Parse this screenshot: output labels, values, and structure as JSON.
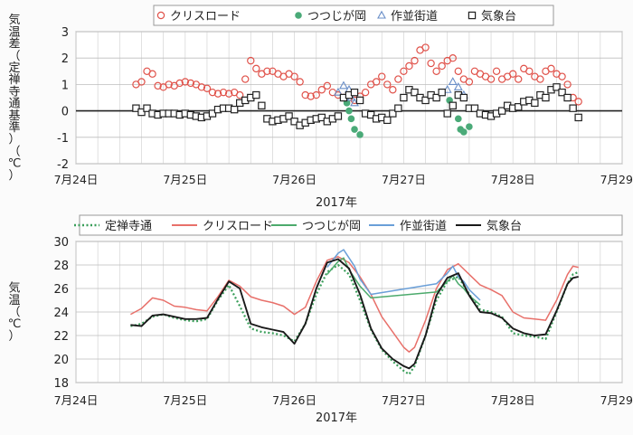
{
  "chart_data": [
    {
      "type": "scatter",
      "xlabel": "2017年",
      "ylabel": "気温差（定禅寺通基準）（℃）",
      "ylim": [
        -2,
        3
      ],
      "yticks": [
        -2,
        -1,
        0,
        1,
        2,
        3
      ],
      "xlim": [
        24,
        29
      ],
      "xtick_values": [
        24,
        25,
        26,
        27,
        28,
        29
      ],
      "xtick_labels": [
        "7月24日",
        "7月25日",
        "7月26日",
        "7月27日",
        "7月28日",
        "7月29日"
      ],
      "grid": true,
      "legend_position": "top",
      "series": [
        {
          "name": "クリスロード",
          "marker": "circle-open",
          "color": "#e0524a",
          "x": [
            24.55,
            24.6,
            24.65,
            24.7,
            24.75,
            24.8,
            24.85,
            24.9,
            24.95,
            25.0,
            25.05,
            25.1,
            25.15,
            25.2,
            25.25,
            25.3,
            25.35,
            25.4,
            25.45,
            25.5,
            25.55,
            25.6,
            25.65,
            25.7,
            25.75,
            25.8,
            25.85,
            25.9,
            25.95,
            26.0,
            26.05,
            26.1,
            26.15,
            26.2,
            26.25,
            26.3,
            26.35,
            26.4,
            26.45,
            26.5,
            26.55,
            26.6,
            26.65,
            26.7,
            26.75,
            26.8,
            26.85,
            26.9,
            26.95,
            27.0,
            27.05,
            27.1,
            27.15,
            27.2,
            27.25,
            27.3,
            27.35,
            27.4,
            27.45,
            27.5,
            27.55,
            27.6,
            27.65,
            27.7,
            27.75,
            27.8,
            27.85,
            27.9,
            27.95,
            28.0,
            28.05,
            28.1,
            28.15,
            28.2,
            28.25,
            28.3,
            28.35,
            28.4,
            28.45,
            28.5,
            28.55,
            28.6
          ],
          "y": [
            1.0,
            1.1,
            1.5,
            1.4,
            0.95,
            0.9,
            1.0,
            0.95,
            1.05,
            1.1,
            1.05,
            1.0,
            0.9,
            0.85,
            0.7,
            0.65,
            0.7,
            0.65,
            0.7,
            0.6,
            1.2,
            1.9,
            1.6,
            1.4,
            1.5,
            1.5,
            1.4,
            1.3,
            1.4,
            1.3,
            1.1,
            0.6,
            0.55,
            0.6,
            0.8,
            0.95,
            0.7,
            0.6,
            0.5,
            0.5,
            0.4,
            0.55,
            0.7,
            1.0,
            1.1,
            1.3,
            1.0,
            0.8,
            1.2,
            1.5,
            1.7,
            1.9,
            2.3,
            2.4,
            1.8,
            1.5,
            1.7,
            1.9,
            2.0,
            1.5,
            1.2,
            1.1,
            1.5,
            1.4,
            1.3,
            1.2,
            1.5,
            1.2,
            1.3,
            1.4,
            1.2,
            1.6,
            1.5,
            1.3,
            1.2,
            1.5,
            1.6,
            1.4,
            1.3,
            1.0,
            0.5,
            0.35
          ]
        },
        {
          "name": "つつじが岡",
          "marker": "circle-filled",
          "color": "#4aaa78",
          "x": [
            26.45,
            26.48,
            26.5,
            26.52,
            26.55,
            26.6,
            27.42,
            27.45,
            27.5,
            27.52,
            27.55,
            27.6
          ],
          "y": [
            0.5,
            0.3,
            0.0,
            -0.3,
            -0.7,
            -0.9,
            0.4,
            0.2,
            -0.3,
            -0.7,
            -0.8,
            -0.6
          ]
        },
        {
          "name": "作並街道",
          "marker": "triangle-open",
          "color": "#6a8fc8",
          "x": [
            26.4,
            26.45,
            26.5,
            26.52,
            26.55,
            27.4,
            27.45,
            27.5,
            27.55
          ],
          "y": [
            0.7,
            0.95,
            0.8,
            0.5,
            0.3,
            0.8,
            1.1,
            0.9,
            0.6
          ]
        },
        {
          "name": "気象台",
          "marker": "square-open",
          "color": "#222222",
          "x": [
            24.55,
            24.6,
            24.65,
            24.7,
            24.75,
            24.8,
            24.85,
            24.9,
            24.95,
            25.0,
            25.05,
            25.1,
            25.15,
            25.2,
            25.25,
            25.3,
            25.35,
            25.4,
            25.45,
            25.5,
            25.55,
            25.6,
            25.65,
            25.7,
            25.75,
            25.8,
            25.85,
            25.9,
            25.95,
            26.0,
            26.05,
            26.1,
            26.15,
            26.2,
            26.25,
            26.3,
            26.35,
            26.4,
            26.45,
            26.5,
            26.55,
            26.6,
            26.65,
            26.7,
            26.75,
            26.8,
            26.85,
            26.9,
            26.95,
            27.0,
            27.05,
            27.1,
            27.15,
            27.2,
            27.25,
            27.3,
            27.35,
            27.4,
            27.45,
            27.5,
            27.55,
            27.6,
            27.65,
            27.7,
            27.75,
            27.8,
            27.85,
            27.9,
            27.95,
            28.0,
            28.05,
            28.1,
            28.15,
            28.2,
            28.25,
            28.3,
            28.35,
            28.4,
            28.45,
            28.5,
            28.55,
            28.6
          ],
          "y": [
            0.1,
            -0.05,
            0.1,
            -0.1,
            -0.15,
            -0.1,
            -0.1,
            -0.1,
            -0.15,
            -0.1,
            -0.15,
            -0.2,
            -0.25,
            -0.2,
            -0.1,
            0.05,
            0.1,
            0.1,
            0.05,
            0.3,
            0.4,
            0.5,
            0.6,
            0.2,
            -0.3,
            -0.4,
            -0.35,
            -0.3,
            -0.2,
            -0.4,
            -0.55,
            -0.45,
            -0.35,
            -0.3,
            -0.25,
            -0.4,
            -0.3,
            -0.2,
            0.5,
            0.6,
            0.7,
            0.4,
            -0.1,
            -0.15,
            -0.3,
            -0.25,
            -0.35,
            -0.1,
            0.1,
            0.5,
            0.8,
            0.7,
            0.5,
            0.4,
            0.6,
            0.5,
            0.7,
            -0.1,
            0.2,
            0.6,
            0.5,
            0.1,
            0.1,
            -0.1,
            -0.15,
            -0.2,
            -0.1,
            0.0,
            0.2,
            0.1,
            0.15,
            0.35,
            0.4,
            0.3,
            0.6,
            0.5,
            0.8,
            0.9,
            0.7,
            0.5,
            0.1,
            -0.25
          ]
        }
      ]
    },
    {
      "type": "line",
      "xlabel": "2017年",
      "ylabel": "気温（℃）",
      "ylim": [
        18,
        30
      ],
      "yticks": [
        18,
        20,
        22,
        24,
        26,
        28,
        30
      ],
      "xlim": [
        24,
        29
      ],
      "xtick_values": [
        24,
        25,
        26,
        27,
        28,
        29
      ],
      "xtick_labels": [
        "7月24日",
        "7月25日",
        "7月26日",
        "7月27日",
        "7月28日",
        "7月29日"
      ],
      "grid": true,
      "legend_position": "top",
      "series": [
        {
          "name": "定禅寺通",
          "style": "dotted",
          "color": "#3a9e5a",
          "x": [
            24.5,
            24.6,
            24.7,
            24.8,
            24.9,
            25.0,
            25.1,
            25.2,
            25.3,
            25.4,
            25.5,
            25.6,
            25.7,
            25.8,
            25.9,
            26.0,
            26.1,
            26.2,
            26.3,
            26.4,
            26.5,
            26.6,
            26.7,
            26.8,
            26.9,
            27.0,
            27.05,
            27.1,
            27.2,
            27.3,
            27.4,
            27.5,
            27.6,
            27.7,
            27.8,
            27.9,
            28.0,
            28.1,
            28.2,
            28.3,
            28.4,
            28.5,
            28.55,
            28.6
          ],
          "y": [
            22.8,
            23.0,
            23.6,
            23.8,
            23.5,
            23.3,
            23.2,
            23.4,
            25.0,
            26.3,
            24.5,
            22.6,
            22.3,
            22.2,
            22.0,
            21.5,
            23.0,
            25.5,
            27.4,
            28.0,
            27.2,
            25.0,
            22.5,
            20.8,
            19.8,
            19.0,
            18.7,
            19.4,
            22.0,
            25.0,
            26.6,
            27.0,
            25.5,
            24.2,
            24.0,
            23.6,
            22.2,
            22.0,
            21.9,
            21.7,
            24.0,
            26.4,
            27.2,
            27.4
          ]
        },
        {
          "name": "クリスロード",
          "style": "solid",
          "color": "#e8706a",
          "x": [
            24.5,
            24.6,
            24.7,
            24.8,
            24.9,
            25.0,
            25.1,
            25.2,
            25.3,
            25.4,
            25.5,
            25.6,
            25.7,
            25.8,
            25.9,
            26.0,
            26.1,
            26.2,
            26.3,
            26.4,
            26.5,
            26.6,
            26.7,
            26.8,
            26.9,
            27.0,
            27.05,
            27.1,
            27.2,
            27.3,
            27.4,
            27.5,
            27.6,
            27.7,
            27.8,
            27.9,
            28.0,
            28.1,
            28.2,
            28.3,
            28.4,
            28.5,
            28.55,
            28.6
          ],
          "y": [
            23.8,
            24.3,
            25.2,
            25.0,
            24.5,
            24.4,
            24.2,
            24.1,
            25.3,
            26.7,
            26.2,
            25.3,
            25.0,
            24.8,
            24.5,
            23.8,
            24.4,
            26.6,
            28.4,
            28.7,
            28.2,
            27.0,
            25.5,
            23.6,
            22.3,
            21.0,
            20.6,
            21.0,
            23.3,
            26.0,
            27.6,
            28.1,
            27.2,
            26.3,
            25.9,
            25.4,
            24.0,
            23.5,
            23.4,
            23.3,
            25.0,
            27.2,
            27.9,
            27.8
          ]
        },
        {
          "name": "つつじが岡",
          "style": "solid",
          "color": "#4caa6c",
          "x": [
            26.3,
            26.4,
            26.45,
            26.5,
            26.55,
            26.6,
            26.7,
            27.3,
            27.4,
            27.45,
            27.5,
            27.55,
            27.6,
            27.7
          ],
          "y": [
            27.2,
            28.3,
            28.6,
            27.6,
            26.9,
            26.2,
            25.2,
            25.7,
            26.6,
            27.1,
            26.4,
            26.0,
            25.4,
            24.6
          ]
        },
        {
          "name": "作並街道",
          "style": "solid",
          "color": "#6a9fd8",
          "x": [
            26.3,
            26.4,
            26.45,
            26.5,
            26.55,
            26.6,
            26.7,
            27.3,
            27.4,
            27.45,
            27.5,
            27.55,
            27.6,
            27.7
          ],
          "y": [
            27.8,
            29.0,
            29.3,
            28.6,
            27.9,
            26.8,
            25.5,
            26.4,
            27.3,
            27.9,
            27.0,
            26.6,
            25.9,
            25.0
          ]
        },
        {
          "name": "気象台",
          "style": "solid",
          "color": "#1a1a1a",
          "x": [
            24.5,
            24.6,
            24.7,
            24.8,
            24.9,
            25.0,
            25.1,
            25.2,
            25.3,
            25.4,
            25.5,
            25.6,
            25.7,
            25.8,
            25.9,
            26.0,
            26.1,
            26.2,
            26.3,
            26.4,
            26.5,
            26.6,
            26.7,
            26.8,
            26.9,
            27.0,
            27.05,
            27.1,
            27.2,
            27.3,
            27.4,
            27.5,
            27.6,
            27.7,
            27.8,
            27.9,
            28.0,
            28.1,
            28.2,
            28.3,
            28.4,
            28.5,
            28.55,
            28.6
          ],
          "y": [
            22.9,
            22.8,
            23.7,
            23.8,
            23.6,
            23.4,
            23.4,
            23.5,
            25.1,
            26.6,
            26.0,
            23.0,
            22.7,
            22.5,
            22.3,
            21.3,
            23.0,
            26.0,
            28.2,
            28.5,
            27.7,
            25.5,
            22.6,
            20.9,
            20.0,
            19.4,
            19.2,
            19.6,
            22.0,
            25.4,
            26.9,
            27.3,
            25.4,
            24.0,
            23.9,
            23.5,
            22.6,
            22.2,
            22.0,
            22.1,
            24.1,
            26.4,
            26.9,
            27.0
          ]
        }
      ]
    }
  ]
}
